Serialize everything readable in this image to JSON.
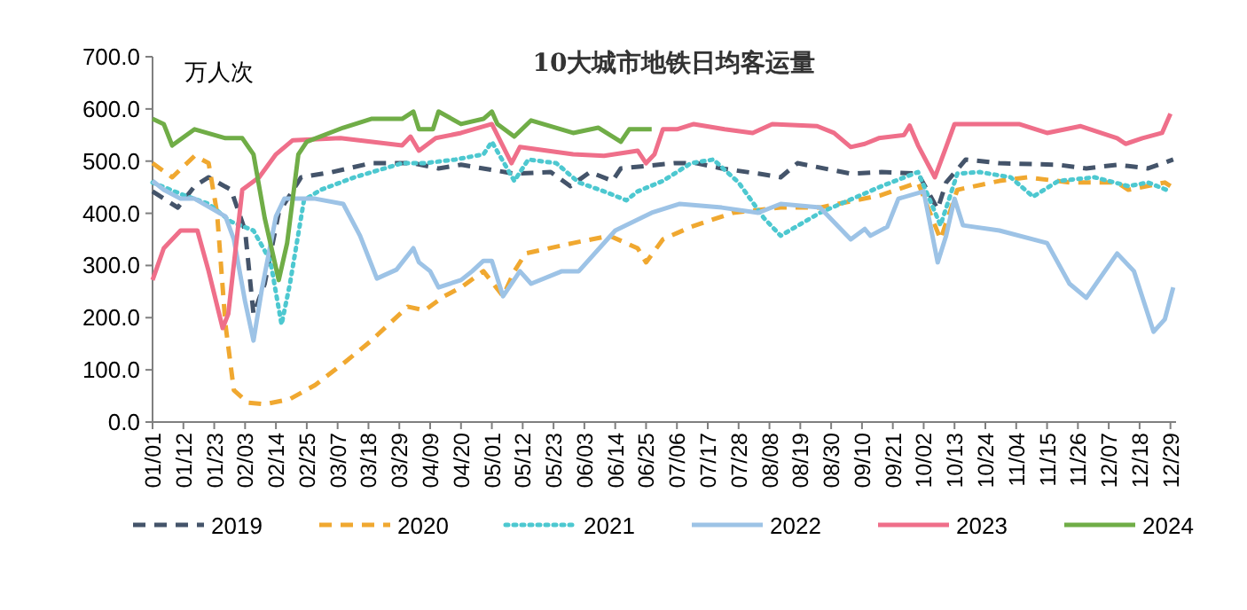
{
  "chart_data": {
    "type": "line",
    "title": "10大城市地铁日均客运量",
    "ylabel": "万人次",
    "xlim": [
      "--01-01",
      "--12-31"
    ],
    "ylim": [
      0,
      700
    ],
    "xticks": [
      {
        "value": "--01-01",
        "label": "01/01"
      },
      {
        "value": "--01-12",
        "label": "01/12"
      },
      {
        "value": "--01-23",
        "label": "01/23"
      },
      {
        "value": "--02-03",
        "label": "02/03"
      },
      {
        "value": "--02-14",
        "label": "02/14"
      },
      {
        "value": "--02-25",
        "label": "02/25"
      },
      {
        "value": "--03-07",
        "label": "03/07"
      },
      {
        "value": "--03-18",
        "label": "03/18"
      },
      {
        "value": "--03-29",
        "label": "03/29"
      },
      {
        "value": "--04-09",
        "label": "04/09"
      },
      {
        "value": "--04-20",
        "label": "04/20"
      },
      {
        "value": "--05-01",
        "label": "05/01"
      },
      {
        "value": "--05-12",
        "label": "05/12"
      },
      {
        "value": "--05-23",
        "label": "05/23"
      },
      {
        "value": "--06-03",
        "label": "06/03"
      },
      {
        "value": "--06-14",
        "label": "06/14"
      },
      {
        "value": "--06-25",
        "label": "06/25"
      },
      {
        "value": "--07-06",
        "label": "07/06"
      },
      {
        "value": "--07-17",
        "label": "07/17"
      },
      {
        "value": "--07-28",
        "label": "07/28"
      },
      {
        "value": "--08-08",
        "label": "08/08"
      },
      {
        "value": "--08-19",
        "label": "08/19"
      },
      {
        "value": "--08-30",
        "label": "08/30"
      },
      {
        "value": "--09-10",
        "label": "09/10"
      },
      {
        "value": "--09-21",
        "label": "09/21"
      },
      {
        "value": "--10-02",
        "label": "10/02"
      },
      {
        "value": "--10-13",
        "label": "10/13"
      },
      {
        "value": "--10-24",
        "label": "10/24"
      },
      {
        "value": "--11-04",
        "label": "11/04"
      },
      {
        "value": "--11-15",
        "label": "11/15"
      },
      {
        "value": "--11-26",
        "label": "11/26"
      },
      {
        "value": "--12-07",
        "label": "12/07"
      },
      {
        "value": "--12-18",
        "label": "12/18"
      },
      {
        "value": "--12-29",
        "label": "12/29"
      }
    ],
    "yticks": [
      {
        "value": 0,
        "label": "0.0"
      },
      {
        "value": 100,
        "label": "100.0"
      },
      {
        "value": 200,
        "label": "200.0"
      },
      {
        "value": 300,
        "label": "300.0"
      },
      {
        "value": 400,
        "label": "400.0"
      },
      {
        "value": 500,
        "label": "500.0"
      },
      {
        "value": 600,
        "label": "600.0"
      },
      {
        "value": 700,
        "label": "700.0"
      }
    ],
    "legend": "bottom",
    "marker": "none",
    "series": [
      {
        "name": "2019",
        "color": "#44546a",
        "line_style": "dashed",
        "x": [
          "--01-01",
          "--01-10",
          "--01-16",
          "--01-21",
          "--01-29",
          "--02-03",
          "--02-06",
          "--02-10",
          "--02-15",
          "--02-23",
          "--03-05",
          "--03-19",
          "--04-03",
          "--04-12",
          "--04-20",
          "--05-09",
          "--05-22",
          "--05-29",
          "--06-05",
          "--06-13",
          "--06-16",
          "--07-05",
          "--07-13",
          "--07-22",
          "--08-04",
          "--08-12",
          "--08-18",
          "--09-06",
          "--09-17",
          "--09-30",
          "--10-07",
          "--10-10",
          "--10-17",
          "--10-29",
          "--11-19",
          "--11-29",
          "--12-10",
          "--12-21",
          "--12-30"
        ],
        "values": [
          442,
          411,
          452,
          469,
          445,
          367,
          207,
          265,
          401,
          469,
          479,
          496,
          496,
          486,
          493,
          476,
          479,
          452,
          479,
          462,
          486,
          496,
          496,
          486,
          476,
          469,
          496,
          476,
          479,
          476,
          408,
          459,
          503,
          496,
          493,
          486,
          493,
          486,
          503
        ]
      },
      {
        "name": "2020",
        "color": "#f0a830",
        "line_style": "dashed",
        "x": [
          "--01-01",
          "--01-08",
          "--01-16",
          "--01-21",
          "--01-24",
          "--01-27",
          "--01-30",
          "--02-04",
          "--02-10",
          "--02-19",
          "--02-28",
          "--03-09",
          "--03-19",
          "--04-01",
          "--04-07",
          "--04-14",
          "--04-20",
          "--04-28",
          "--05-05",
          "--05-09",
          "--05-13",
          "--05-30",
          "--06-12",
          "--06-22",
          "--06-25",
          "--07-01",
          "--07-11",
          "--07-26",
          "--08-12",
          "--08-26",
          "--09-17",
          "--09-30",
          "--10-08",
          "--10-14",
          "--10-29",
          "--11-08",
          "--11-23",
          "--12-10",
          "--12-14",
          "--12-27",
          "--12-29"
        ],
        "values": [
          496,
          469,
          510,
          496,
          401,
          187,
          61,
          37,
          34,
          44,
          71,
          112,
          156,
          221,
          214,
          241,
          258,
          289,
          241,
          289,
          323,
          343,
          357,
          333,
          306,
          350,
          374,
          401,
          411,
          411,
          435,
          459,
          350,
          445,
          462,
          469,
          459,
          459,
          445,
          459,
          452
        ]
      },
      {
        "name": "2021",
        "color": "#4dc8d0",
        "line_style": "dotted",
        "x": [
          "--01-01",
          "--01-12",
          "--01-21",
          "--01-29",
          "--02-06",
          "--02-12",
          "--02-16",
          "--02-19",
          "--02-24",
          "--03-01",
          "--03-13",
          "--03-30",
          "--04-07",
          "--04-18",
          "--04-28",
          "--05-01",
          "--05-09",
          "--05-14",
          "--05-24",
          "--06-01",
          "--06-10",
          "--06-18",
          "--06-22",
          "--07-01",
          "--07-11",
          "--07-19",
          "--07-28",
          "--08-06",
          "--08-12",
          "--08-26",
          "--09-17",
          "--09-30",
          "--10-08",
          "--10-14",
          "--10-22",
          "--11-02",
          "--11-10",
          "--11-19",
          "--12-02",
          "--12-14",
          "--12-21",
          "--12-29"
        ],
        "values": [
          459,
          435,
          418,
          384,
          367,
          309,
          187,
          265,
          425,
          445,
          469,
          496,
          496,
          503,
          513,
          537,
          462,
          503,
          496,
          459,
          442,
          425,
          442,
          462,
          496,
          503,
          459,
          391,
          357,
          401,
          452,
          479,
          377,
          476,
          479,
          469,
          432,
          462,
          469,
          452,
          459,
          442
        ]
      },
      {
        "name": "2022",
        "color": "#9dc3e6",
        "line_style": "solid",
        "x": [
          "--01-01",
          "--01-05",
          "--01-11",
          "--01-16",
          "--01-27",
          "--01-30",
          "--02-03",
          "--02-06",
          "--02-09",
          "--02-14",
          "--02-17",
          "--02-28",
          "--03-09",
          "--03-15",
          "--03-21",
          "--03-28",
          "--04-03",
          "--04-05",
          "--04-09",
          "--04-12",
          "--04-20",
          "--04-24",
          "--04-28",
          "--05-01",
          "--05-05",
          "--05-11",
          "--05-15",
          "--05-26",
          "--06-01",
          "--06-14",
          "--06-27",
          "--07-07",
          "--07-22",
          "--08-04",
          "--08-12",
          "--08-26",
          "--09-06",
          "--09-11",
          "--09-13",
          "--09-19",
          "--09-23",
          "--10-02",
          "--10-07",
          "--10-10",
          "--10-13",
          "--10-16",
          "--10-29",
          "--11-15",
          "--11-23",
          "--11-29",
          "--12-10",
          "--12-16",
          "--12-23",
          "--12-27",
          "--12-30"
        ],
        "values": [
          462,
          445,
          428,
          428,
          394,
          350,
          231,
          156,
          255,
          394,
          428,
          428,
          418,
          357,
          275,
          292,
          333,
          306,
          289,
          258,
          272,
          289,
          309,
          309,
          241,
          289,
          265,
          289,
          289,
          367,
          401,
          418,
          411,
          401,
          418,
          411,
          350,
          370,
          357,
          374,
          428,
          442,
          306,
          357,
          428,
          377,
          367,
          343,
          265,
          238,
          323,
          289,
          173,
          197,
          258
        ]
      },
      {
        "name": "2023",
        "color": "#ef6f8a",
        "line_style": "solid",
        "x": [
          "--01-01",
          "--01-05",
          "--01-11",
          "--01-17",
          "--01-21",
          "--01-26",
          "--01-28",
          "--02-02",
          "--02-08",
          "--02-14",
          "--02-20",
          "--03-08",
          "--03-30",
          "--04-02",
          "--04-05",
          "--04-11",
          "--04-20",
          "--05-01",
          "--05-08",
          "--05-11",
          "--05-30",
          "--06-10",
          "--06-22",
          "--06-25",
          "--06-28",
          "--07-01",
          "--07-06",
          "--07-12",
          "--07-23",
          "--08-02",
          "--08-09",
          "--08-25",
          "--08-31",
          "--09-06",
          "--09-11",
          "--09-16",
          "--09-25",
          "--09-27",
          "--09-30",
          "--10-06",
          "--10-10",
          "--10-13",
          "--10-27",
          "--11-05",
          "--11-15",
          "--11-27",
          "--12-10",
          "--12-13",
          "--12-19",
          "--12-26",
          "--12-29"
        ],
        "values": [
          272,
          333,
          367,
          367,
          289,
          180,
          207,
          445,
          469,
          513,
          540,
          544,
          530,
          547,
          520,
          544,
          554,
          571,
          496,
          527,
          513,
          510,
          520,
          496,
          513,
          561,
          561,
          571,
          561,
          554,
          571,
          567,
          554,
          527,
          533,
          544,
          550,
          568,
          530,
          469,
          527,
          571,
          571,
          571,
          554,
          567,
          544,
          533,
          544,
          554,
          591
        ]
      },
      {
        "name": "2024",
        "color": "#70ad47",
        "line_style": "solid",
        "x": [
          "--01-01",
          "--01-05",
          "--01-08",
          "--01-16",
          "--01-27",
          "--02-02",
          "--02-06",
          "--02-10",
          "--02-15",
          "--02-18",
          "--02-22",
          "--02-25",
          "--03-09",
          "--03-19",
          "--03-30",
          "--04-03",
          "--04-05",
          "--04-10",
          "--04-12",
          "--04-20",
          "--04-28",
          "--05-01",
          "--05-03",
          "--05-09",
          "--05-15",
          "--05-30",
          "--06-08",
          "--06-16",
          "--06-19",
          "--06-27"
        ],
        "values": [
          581,
          571,
          530,
          561,
          544,
          544,
          513,
          391,
          272,
          343,
          513,
          537,
          564,
          581,
          581,
          595,
          561,
          561,
          595,
          571,
          581,
          595,
          571,
          547,
          578,
          554,
          564,
          537,
          561,
          561
        ]
      }
    ]
  }
}
